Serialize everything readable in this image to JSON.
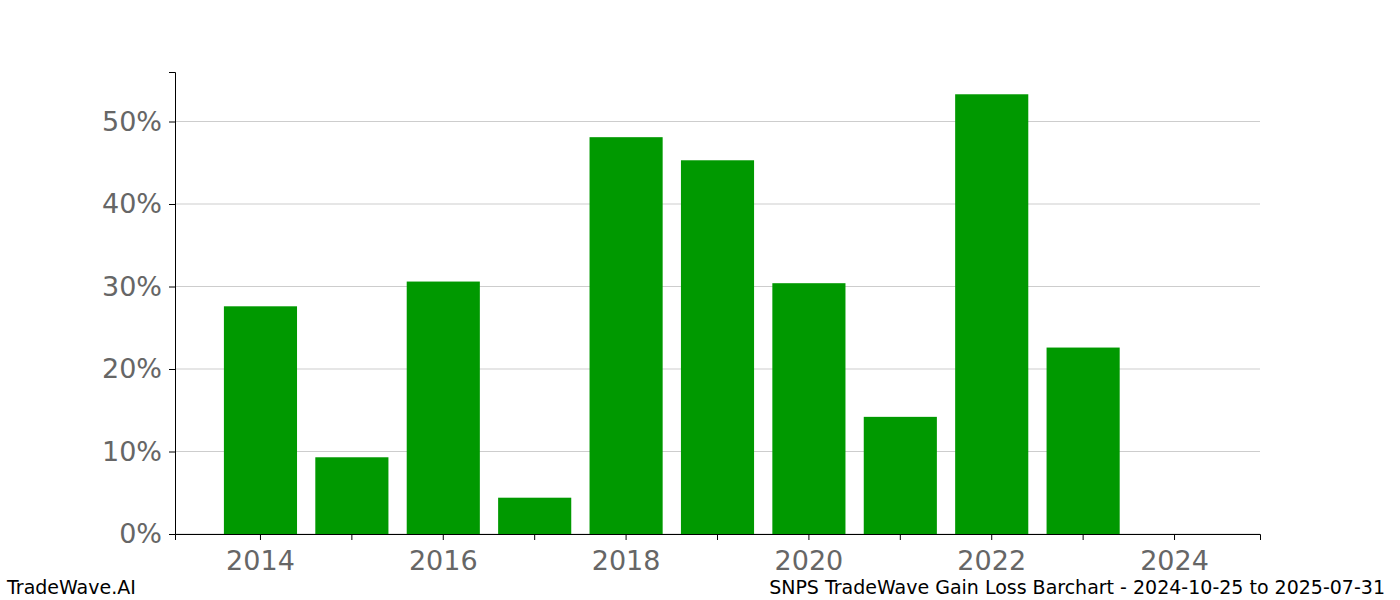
{
  "chart_data": {
    "type": "bar",
    "title": "SNPS TradeWave Gain Loss Barchart - 2024-10-25 to 2025-07-31",
    "annotations": [
      "TradeWave.AI"
    ],
    "categories": [
      "2014",
      null,
      "2016",
      null,
      "2018",
      null,
      "2020",
      null,
      "2022",
      null,
      "2024"
    ],
    "values": [
      27.6,
      9.3,
      30.6,
      4.4,
      48.1,
      45.3,
      30.4,
      14.2,
      53.3,
      22.6,
      null
    ],
    "color": "#009900",
    "ylim": [
      0,
      56
    ],
    "yticks": [
      {
        "value": 0,
        "label": "0%"
      },
      {
        "value": 10,
        "label": "10%"
      },
      {
        "value": 20,
        "label": "20%"
      },
      {
        "value": 30,
        "label": "30%"
      },
      {
        "value": 40,
        "label": "40%"
      },
      {
        "value": 50,
        "label": "50%"
      }
    ],
    "grid": true
  }
}
